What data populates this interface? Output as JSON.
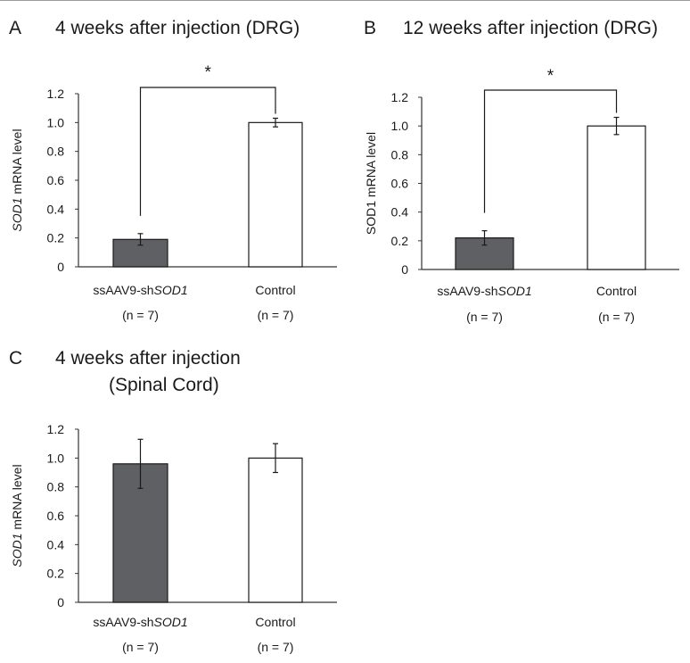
{
  "panels": [
    {
      "letter": "A",
      "title": "4 weeks after injection (DRG)"
    },
    {
      "letter": "B",
      "title": "12 weeks after injection (DRG)"
    },
    {
      "letter": "C",
      "title_line1": "4 weeks after injection",
      "title_line2": "(Spinal Cord)"
    }
  ],
  "colors": {
    "treated_bar": "#5f6063",
    "control_bar": "#ffffff",
    "bar_stroke": "#1a1a1a"
  },
  "chart_data": [
    {
      "type": "bar",
      "panel": "A",
      "title": "4 weeks after injection (DRG)",
      "ylabel_italic": "SOD1",
      "ylabel_rest": " mRNA level",
      "ylim": [
        0,
        1.2
      ],
      "yticks": [
        "0",
        "0.2",
        "0.4",
        "0.6",
        "0.8",
        "1.0",
        "1.2"
      ],
      "categories": [
        {
          "prefix": "ssAAV9-sh",
          "italic": "SOD1",
          "n": "(n = 7)"
        },
        {
          "prefix": "Control",
          "italic": "",
          "n": "(n = 7)"
        }
      ],
      "values": [
        0.19,
        1.0
      ],
      "errors": [
        0.04,
        0.03
      ],
      "significance": "*"
    },
    {
      "type": "bar",
      "panel": "B",
      "title": "12 weeks after injection (DRG)",
      "ylabel_italic": "",
      "ylabel_rest": "SOD1 mRNA level",
      "ylim": [
        0,
        1.2
      ],
      "yticks": [
        "0",
        "0.2",
        "0.4",
        "0.6",
        "0.8",
        "1.0",
        "1.2"
      ],
      "categories": [
        {
          "prefix": "ssAAV9-sh",
          "italic": "SOD1",
          "n": "(n = 7)"
        },
        {
          "prefix": "Control",
          "italic": "",
          "n": "(n = 7)"
        }
      ],
      "values": [
        0.22,
        1.0
      ],
      "errors": [
        0.05,
        0.06
      ],
      "significance": "*"
    },
    {
      "type": "bar",
      "panel": "C",
      "title": "4 weeks after injection (Spinal Cord)",
      "ylabel_italic": "SOD1",
      "ylabel_rest": " mRNA level",
      "ylim": [
        0,
        1.2
      ],
      "yticks": [
        "0",
        "0.2",
        "0.4",
        "0.6",
        "0.8",
        "1.0",
        "1.2"
      ],
      "categories": [
        {
          "prefix": "ssAAV9-sh",
          "italic": "SOD1",
          "n": "(n = 7)"
        },
        {
          "prefix": "Control",
          "italic": "",
          "n": "(n = 7)"
        }
      ],
      "values": [
        0.96,
        1.0
      ],
      "errors": [
        0.17,
        0.1
      ],
      "significance": ""
    }
  ]
}
